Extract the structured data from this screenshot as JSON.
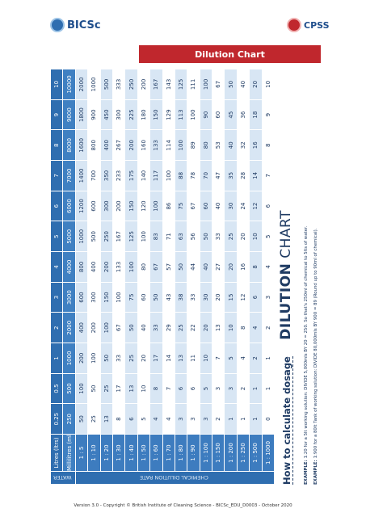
{
  "header": {
    "logos": [
      "BICSc",
      "CPSS"
    ],
    "banner": "Dilution Chart"
  },
  "title": {
    "bold": "DILUTION",
    "light": "CHART"
  },
  "table": {
    "water_label": "WATER",
    "side_label": "CHEMICAL DILUTION RATE",
    "header_rows": [
      {
        "label": "Litres (ltrs)",
        "values": [
          0.25,
          0.5,
          1,
          2,
          3,
          4,
          5,
          6,
          7,
          8,
          9,
          10
        ]
      },
      {
        "label": "Millilitres (mls)",
        "values": [
          250,
          500,
          1000,
          2000,
          3000,
          4000,
          5000,
          6000,
          7000,
          8000,
          9000,
          10000
        ]
      }
    ],
    "rows": [
      {
        "rate": "1 : 5",
        "values": [
          50,
          100,
          200,
          400,
          600,
          800,
          1000,
          1200,
          1400,
          1600,
          1800,
          2000
        ]
      },
      {
        "rate": "1 : 10",
        "values": [
          25,
          50,
          100,
          200,
          300,
          400,
          500,
          600,
          700,
          800,
          900,
          1000
        ]
      },
      {
        "rate": "1 : 20",
        "values": [
          13,
          25,
          50,
          100,
          150,
          200,
          250,
          300,
          350,
          400,
          450,
          500
        ]
      },
      {
        "rate": "1 : 30",
        "values": [
          8,
          17,
          33,
          67,
          100,
          133,
          167,
          200,
          233,
          267,
          300,
          333
        ]
      },
      {
        "rate": "1 : 40",
        "values": [
          6,
          13,
          25,
          50,
          75,
          100,
          125,
          150,
          175,
          200,
          225,
          250
        ]
      },
      {
        "rate": "1 : 50",
        "values": [
          5,
          10,
          20,
          40,
          60,
          80,
          100,
          120,
          140,
          160,
          180,
          200
        ]
      },
      {
        "rate": "1 : 60",
        "values": [
          4,
          8,
          17,
          33,
          50,
          67,
          83,
          100,
          117,
          133,
          150,
          167
        ]
      },
      {
        "rate": "1 : 70",
        "values": [
          4,
          7,
          14,
          29,
          43,
          57,
          71,
          86,
          100,
          114,
          129,
          143
        ]
      },
      {
        "rate": "1 : 80",
        "values": [
          3,
          6,
          13,
          25,
          38,
          50,
          63,
          75,
          88,
          100,
          113,
          125
        ]
      },
      {
        "rate": "1 : 90",
        "values": [
          3,
          6,
          11,
          22,
          33,
          44,
          56,
          67,
          78,
          89,
          100,
          111
        ]
      },
      {
        "rate": "1 : 100",
        "values": [
          3,
          5,
          10,
          20,
          30,
          40,
          50,
          60,
          70,
          80,
          90,
          100
        ]
      },
      {
        "rate": "1 : 150",
        "values": [
          2,
          3,
          7,
          13,
          20,
          27,
          33,
          40,
          47,
          53,
          60,
          67
        ]
      },
      {
        "rate": "1 : 200",
        "values": [
          1,
          3,
          5,
          10,
          15,
          20,
          25,
          30,
          35,
          40,
          45,
          50
        ]
      },
      {
        "rate": "1 : 250",
        "values": [
          1,
          2,
          4,
          8,
          12,
          16,
          20,
          24,
          28,
          32,
          36,
          40
        ]
      },
      {
        "rate": "1 : 500",
        "values": [
          1,
          1,
          2,
          4,
          6,
          8,
          10,
          12,
          14,
          16,
          18,
          20
        ]
      },
      {
        "rate": "1 : 1000",
        "values": [
          0,
          1,
          1,
          2,
          3,
          4,
          5,
          6,
          7,
          8,
          9,
          10
        ]
      }
    ]
  },
  "dosage": {
    "heading": "How to calculate dosage",
    "examples": [
      {
        "label": "EXAMPLE:",
        "text": "1:20 for a 5lt working solution: DIVIDE 5,000mls BY 20 = 250. So that's 250ml of chemical to 5lts of water."
      },
      {
        "label": "EXAMPLE:",
        "text": "1:900 for a 80lt Tank of working solution: DIVIDE 80,000mls BY 900 = 89 (Round up to 90ml of chemical)."
      }
    ]
  },
  "footer": "Version 3.0 - Copyright © British Institute of Cleaning Science - BICSc_EDU_D0003 - October 2020"
}
